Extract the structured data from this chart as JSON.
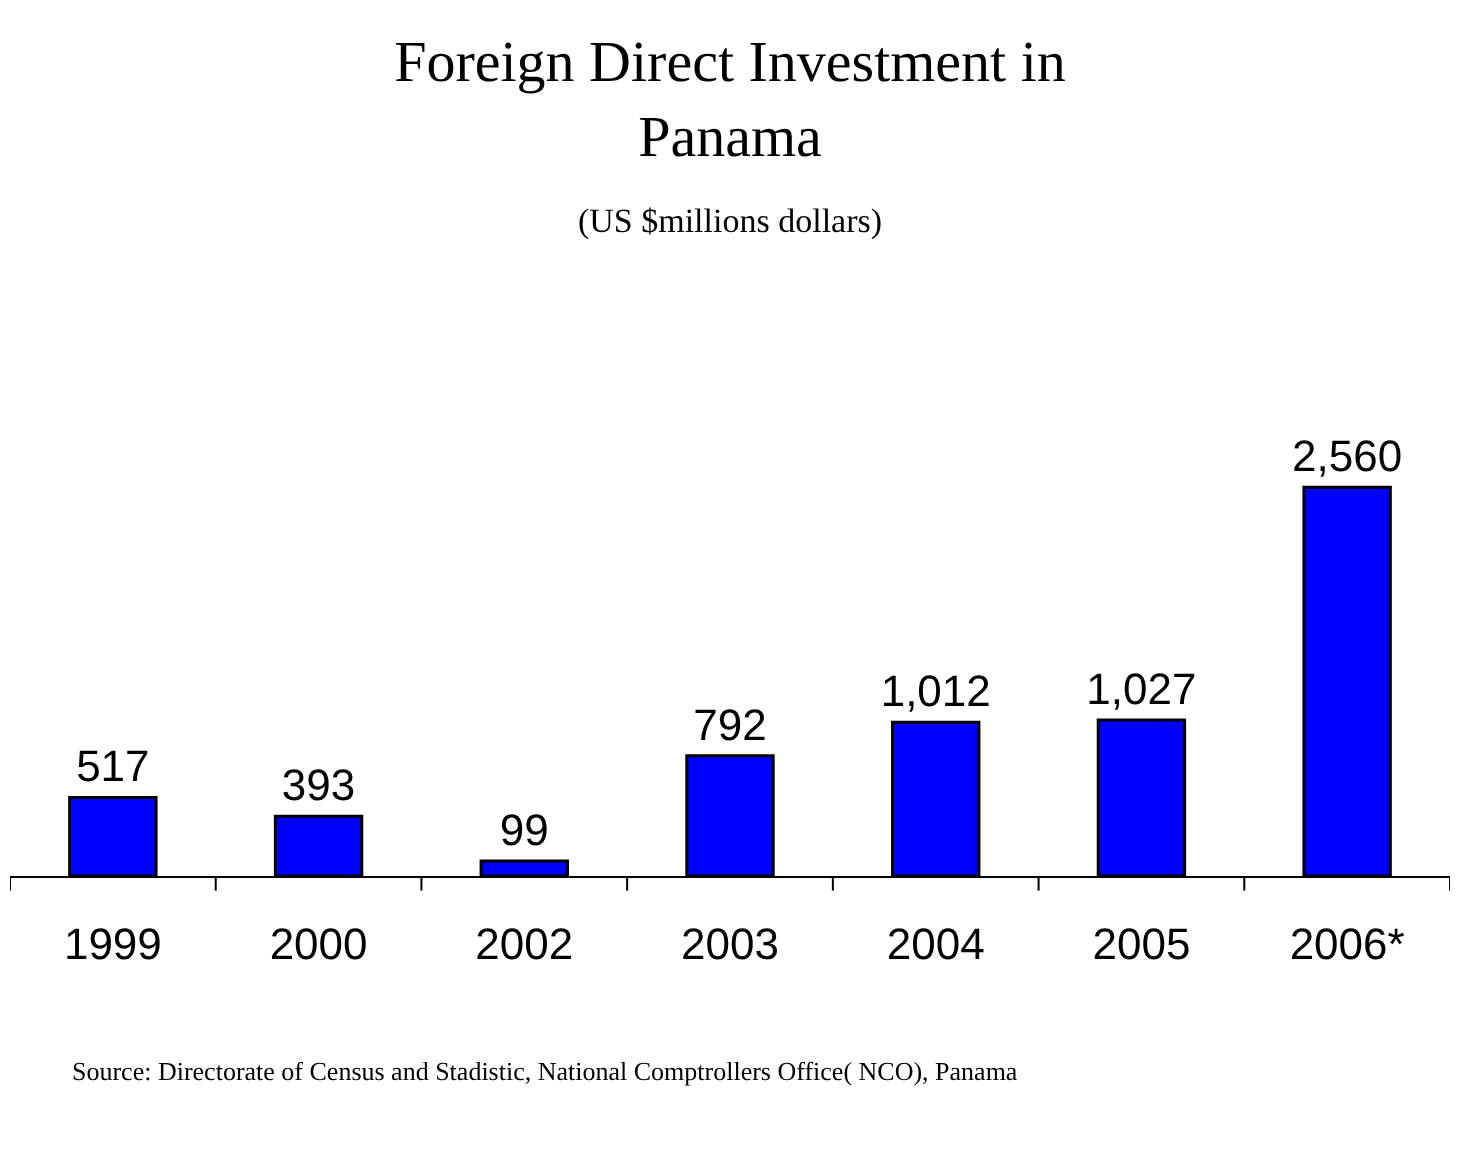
{
  "chart_data": {
    "type": "bar",
    "title": "Foreign Direct Investment in Panama",
    "subtitle": "(US $millions dollars)",
    "categories": [
      "1999",
      "2000",
      "2002",
      "2003",
      "2004",
      "2005",
      "2006*"
    ],
    "values": [
      517,
      393,
      99,
      792,
      1012,
      1027,
      2560
    ],
    "value_labels": [
      "517",
      "393",
      "99",
      "792",
      "1,012",
      "1,027",
      "2,560"
    ],
    "color": "#0000ff",
    "annotations": [
      "Source: Directorate of Census and Stadistic, National Comptrollers Office( NCO), Panama"
    ]
  }
}
